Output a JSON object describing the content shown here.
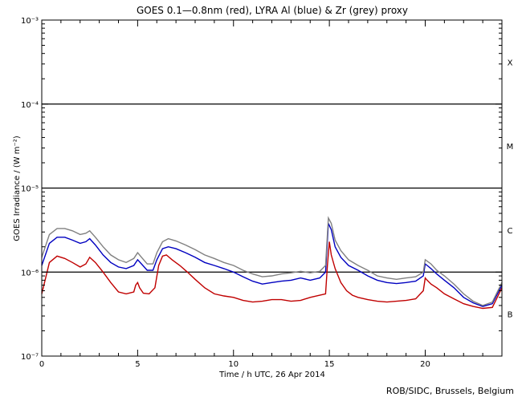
{
  "chart_data": {
    "type": "line",
    "title": "GOES 0.1—0.8nm (red), LYRA Al (blue) & Zr (grey) proxy",
    "xlabel": "Time / h UTC, 26 Apr 2014",
    "ylabel": "GOES Irradiance / (W m⁻²)",
    "xlim": [
      0,
      24
    ],
    "ylim": [
      1e-07,
      0.001
    ],
    "yscale": "log",
    "xticks": [
      0,
      5,
      10,
      15,
      20
    ],
    "yticks": [
      {
        "value": 1e-07,
        "label": "10⁻⁷"
      },
      {
        "value": 1e-06,
        "label": "10⁻⁶"
      },
      {
        "value": 1e-05,
        "label": "10⁻⁵"
      },
      {
        "value": 0.0001,
        "label": "10⁻⁴"
      },
      {
        "value": 0.001,
        "label": "10⁻³"
      }
    ],
    "hlines": [
      1e-06,
      1e-05,
      0.0001
    ],
    "classes": [
      {
        "label": "X",
        "value": 0.000316
      },
      {
        "label": "M",
        "value": 3.16e-05
      },
      {
        "label": "C",
        "value": 3.16e-06
      },
      {
        "label": "B",
        "value": 3.16e-07
      }
    ],
    "series": [
      {
        "color": "#c00000",
        "x": [
          0,
          0.4,
          0.8,
          1.2,
          1.6,
          2.0,
          2.3,
          2.5,
          2.8,
          3.2,
          3.6,
          4.0,
          4.4,
          4.8,
          4.9,
          5.0,
          5.1,
          5.3,
          5.6,
          5.9,
          6.1,
          6.3,
          6.5,
          6.8,
          7.2,
          7.6,
          8.0,
          8.5,
          9.0,
          9.5,
          10.0,
          10.5,
          11.0,
          11.5,
          12.0,
          12.5,
          13.0,
          13.5,
          14.0,
          14.5,
          14.8,
          14.9,
          15.0,
          15.1,
          15.3,
          15.6,
          15.9,
          16.2,
          16.5,
          17.0,
          17.5,
          18.0,
          18.5,
          19.0,
          19.5,
          19.9,
          20.0,
          20.1,
          20.3,
          20.6,
          21.0,
          21.5,
          22.0,
          22.5,
          23.0,
          23.5,
          24.0
        ],
        "y": [
          5.5e-07,
          1.3e-06,
          1.55e-06,
          1.45e-06,
          1.3e-06,
          1.15e-06,
          1.25e-06,
          1.5e-06,
          1.3e-06,
          1e-06,
          7.5e-07,
          5.8e-07,
          5.5e-07,
          5.8e-07,
          7e-07,
          7.5e-07,
          6.5e-07,
          5.6e-07,
          5.5e-07,
          6.5e-07,
          1.2e-06,
          1.55e-06,
          1.6e-06,
          1.4e-06,
          1.2e-06,
          1e-06,
          8.2e-07,
          6.5e-07,
          5.5e-07,
          5.2e-07,
          5e-07,
          4.6e-07,
          4.4e-07,
          4.5e-07,
          4.7e-07,
          4.7e-07,
          4.5e-07,
          4.6e-07,
          5e-07,
          5.3e-07,
          5.5e-07,
          1.2e-06,
          2.3e-06,
          1.6e-06,
          1.1e-06,
          7.5e-07,
          6e-07,
          5.3e-07,
          5e-07,
          4.7e-07,
          4.5e-07,
          4.4e-07,
          4.5e-07,
          4.6e-07,
          4.8e-07,
          6e-07,
          8.5e-07,
          8e-07,
          7.2e-07,
          6.5e-07,
          5.5e-07,
          4.8e-07,
          4.2e-07,
          3.9e-07,
          3.7e-07,
          3.8e-07,
          6.5e-07
        ]
      },
      {
        "color": "#0000c0",
        "x": [
          0,
          0.4,
          0.8,
          1.2,
          1.6,
          2.0,
          2.3,
          2.5,
          2.8,
          3.2,
          3.6,
          4.0,
          4.4,
          4.8,
          5.0,
          5.2,
          5.5,
          5.8,
          6.0,
          6.3,
          6.6,
          7.0,
          7.5,
          8.0,
          8.5,
          9.0,
          9.5,
          10.0,
          10.5,
          11.0,
          11.5,
          12.0,
          12.5,
          13.0,
          13.5,
          14.0,
          14.5,
          14.8,
          14.95,
          15.1,
          15.3,
          15.6,
          16.0,
          16.5,
          17.0,
          17.5,
          18.0,
          18.5,
          19.0,
          19.5,
          19.9,
          20.0,
          20.1,
          20.3,
          20.6,
          21.0,
          21.5,
          22.0,
          22.5,
          23.0,
          23.5,
          24.0
        ],
        "y": [
          1.2e-06,
          2.2e-06,
          2.6e-06,
          2.6e-06,
          2.4e-06,
          2.2e-06,
          2.3e-06,
          2.5e-06,
          2.1e-06,
          1.6e-06,
          1.3e-06,
          1.15e-06,
          1.1e-06,
          1.2e-06,
          1.4e-06,
          1.25e-06,
          1.05e-06,
          1.05e-06,
          1.4e-06,
          1.9e-06,
          2e-06,
          1.9e-06,
          1.7e-06,
          1.5e-06,
          1.3e-06,
          1.2e-06,
          1.1e-06,
          1e-06,
          8.8e-07,
          7.8e-07,
          7.2e-07,
          7.5e-07,
          7.8e-07,
          8e-07,
          8.5e-07,
          8e-07,
          8.5e-07,
          1e-06,
          3.8e-06,
          3.2e-06,
          2e-06,
          1.5e-06,
          1.2e-06,
          1.05e-06,
          9e-07,
          8e-07,
          7.5e-07,
          7.3e-07,
          7.5e-07,
          7.8e-07,
          9e-07,
          1.25e-06,
          1.2e-06,
          1.1e-06,
          9.5e-07,
          8e-07,
          6.5e-07,
          5e-07,
          4.3e-07,
          3.9e-07,
          4.2e-07,
          7e-07
        ]
      },
      {
        "color": "#808080",
        "x": [
          0,
          0.4,
          0.8,
          1.2,
          1.6,
          2.0,
          2.3,
          2.5,
          2.8,
          3.2,
          3.6,
          4.0,
          4.4,
          4.8,
          5.0,
          5.2,
          5.5,
          5.8,
          6.0,
          6.3,
          6.6,
          7.0,
          7.5,
          8.0,
          8.5,
          9.0,
          9.5,
          10.0,
          10.5,
          11.0,
          11.5,
          12.0,
          12.5,
          13.0,
          13.5,
          14.0,
          14.5,
          14.8,
          14.95,
          15.1,
          15.3,
          15.6,
          16.0,
          16.5,
          17.0,
          17.5,
          18.0,
          18.5,
          19.0,
          19.5,
          19.9,
          20.0,
          20.1,
          20.3,
          20.6,
          21.0,
          21.5,
          22.0,
          22.5,
          23.0,
          23.5,
          24.0
        ],
        "y": [
          1.5e-06,
          2.8e-06,
          3.3e-06,
          3.3e-06,
          3.1e-06,
          2.8e-06,
          2.9e-06,
          3.1e-06,
          2.6e-06,
          2e-06,
          1.6e-06,
          1.4e-06,
          1.3e-06,
          1.45e-06,
          1.7e-06,
          1.5e-06,
          1.25e-06,
          1.25e-06,
          1.7e-06,
          2.3e-06,
          2.5e-06,
          2.35e-06,
          2.1e-06,
          1.85e-06,
          1.6e-06,
          1.45e-06,
          1.3e-06,
          1.2e-06,
          1.05e-06,
          9.5e-07,
          8.8e-07,
          9e-07,
          9.5e-07,
          9.8e-07,
          1.02e-06,
          9.8e-07,
          1.02e-06,
          1.2e-06,
          4.4e-06,
          3.8e-06,
          2.4e-06,
          1.8e-06,
          1.4e-06,
          1.2e-06,
          1.05e-06,
          9e-07,
          8.5e-07,
          8.2e-07,
          8.5e-07,
          8.8e-07,
          1e-06,
          1.4e-06,
          1.35e-06,
          1.25e-06,
          1.05e-06,
          9e-07,
          7.2e-07,
          5.5e-07,
          4.5e-07,
          4e-07,
          4.4e-07,
          7.5e-07
        ]
      }
    ]
  },
  "footer": "ROB/SIDC, Brussels, Belgium"
}
